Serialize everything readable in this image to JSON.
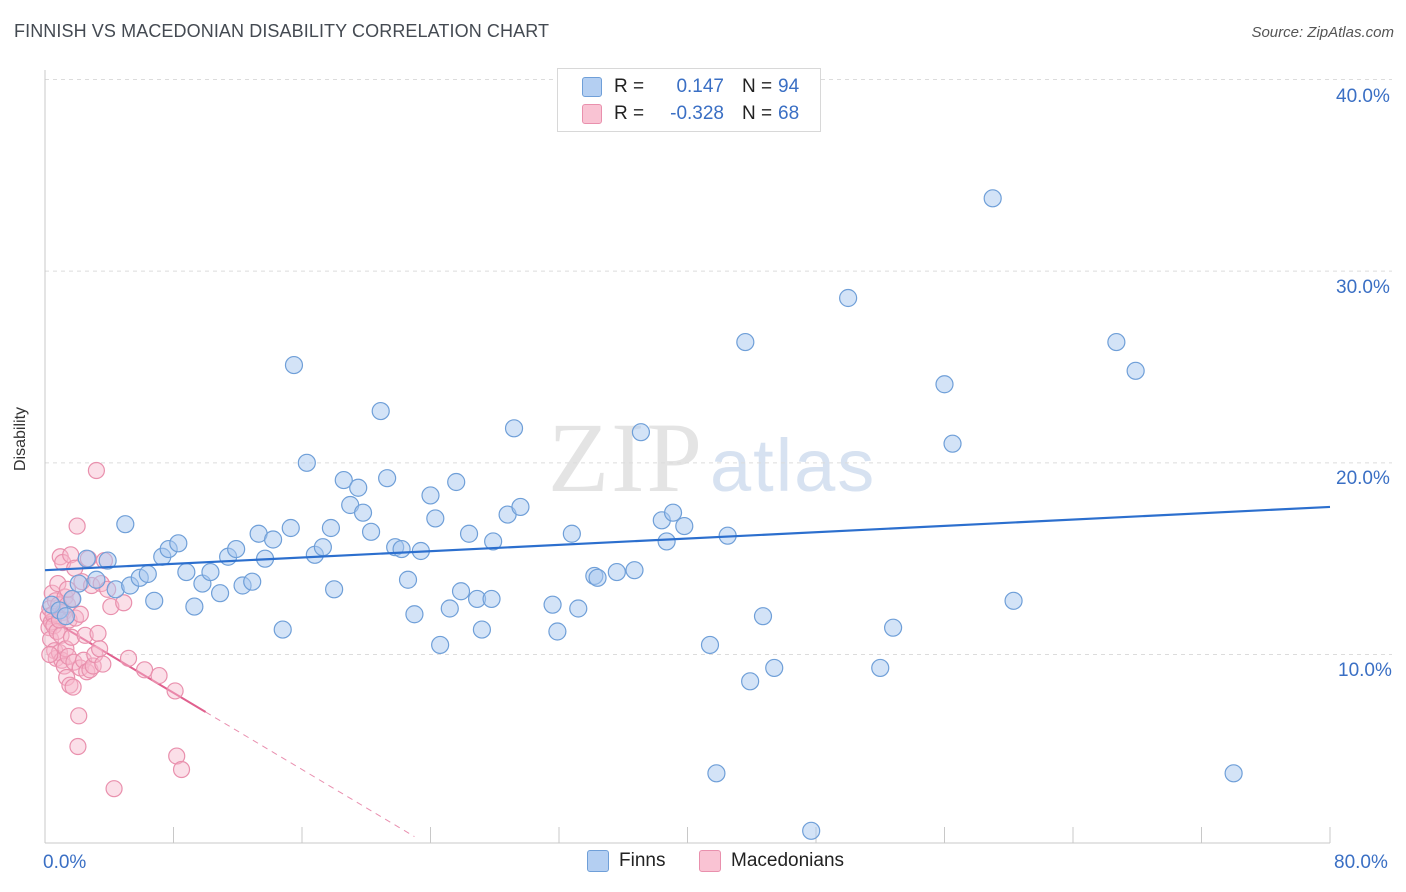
{
  "header": {
    "title": "FINNISH VS MACEDONIAN DISABILITY CORRELATION CHART",
    "source": "Source: ZipAtlas.com"
  },
  "watermark": {
    "part1": "ZIP",
    "part2": "atlas"
  },
  "legend_top": {
    "rows": [
      {
        "r_label": "R =",
        "r_value": "0.147",
        "n_label": "N =",
        "n_value": "94"
      },
      {
        "r_label": "R =",
        "r_value": "-0.328",
        "n_label": "N =",
        "n_value": "68"
      }
    ]
  },
  "legend_bottom": {
    "finns": "Finns",
    "macedonians": "Macedonians"
  },
  "axes": {
    "ylabel": "Disability",
    "x_min_label": "0.0%",
    "x_max_label": "80.0%",
    "y_ticks": [
      "10.0%",
      "20.0%",
      "30.0%",
      "40.0%"
    ]
  },
  "colors": {
    "finns_fill": "#a8c8f0",
    "finns_stroke": "#6f9fd8",
    "finns_line": "#2c6fce",
    "mac_fill": "#f7b8cb",
    "mac_stroke": "#e990ad",
    "mac_line": "#e0608e",
    "tick_text": "#3a6fc4"
  },
  "chart_data": {
    "type": "scatter",
    "title": "FINNISH VS MACEDONIAN DISABILITY CORRELATION CHART",
    "xlabel": "",
    "ylabel": "Disability",
    "xlim": [
      0,
      80
    ],
    "ylim": [
      0,
      42
    ],
    "y_ticks": [
      10,
      20,
      30,
      40
    ],
    "grid": true,
    "legend_position": "bottom",
    "series": [
      {
        "name": "Finns",
        "stats": {
          "R": 0.147,
          "N": 94
        },
        "trend": {
          "x0": 0,
          "y0": 14.4,
          "x1": 80,
          "y1": 17.7
        },
        "points": [
          [
            0.4,
            12.6
          ],
          [
            0.9,
            12.3
          ],
          [
            1.3,
            12.0
          ],
          [
            1.7,
            12.9
          ],
          [
            2.1,
            13.7
          ],
          [
            2.6,
            15.0
          ],
          [
            3.2,
            13.9
          ],
          [
            3.9,
            14.9
          ],
          [
            4.4,
            13.4
          ],
          [
            5.0,
            16.8
          ],
          [
            5.3,
            13.6
          ],
          [
            5.9,
            14.0
          ],
          [
            6.4,
            14.2
          ],
          [
            6.8,
            12.8
          ],
          [
            7.3,
            15.1
          ],
          [
            7.7,
            15.5
          ],
          [
            8.3,
            15.8
          ],
          [
            8.8,
            14.3
          ],
          [
            9.3,
            12.5
          ],
          [
            9.8,
            13.7
          ],
          [
            10.3,
            14.3
          ],
          [
            10.9,
            13.2
          ],
          [
            11.4,
            15.1
          ],
          [
            11.9,
            15.5
          ],
          [
            12.3,
            13.6
          ],
          [
            12.9,
            13.8
          ],
          [
            13.3,
            16.3
          ],
          [
            13.7,
            15.0
          ],
          [
            14.2,
            16.0
          ],
          [
            14.8,
            11.3
          ],
          [
            15.3,
            16.6
          ],
          [
            15.5,
            25.1
          ],
          [
            16.3,
            20.0
          ],
          [
            16.8,
            15.2
          ],
          [
            17.3,
            15.6
          ],
          [
            17.8,
            16.6
          ],
          [
            18.0,
            13.4
          ],
          [
            18.6,
            19.1
          ],
          [
            19.0,
            17.8
          ],
          [
            19.5,
            18.7
          ],
          [
            19.8,
            17.4
          ],
          [
            20.3,
            16.4
          ],
          [
            20.9,
            22.7
          ],
          [
            21.3,
            19.2
          ],
          [
            21.8,
            15.6
          ],
          [
            22.2,
            15.5
          ],
          [
            22.6,
            13.9
          ],
          [
            23.0,
            12.1
          ],
          [
            23.4,
            15.4
          ],
          [
            24.0,
            18.3
          ],
          [
            24.3,
            17.1
          ],
          [
            24.6,
            10.5
          ],
          [
            25.2,
            12.4
          ],
          [
            25.6,
            19.0
          ],
          [
            25.9,
            13.3
          ],
          [
            26.4,
            16.3
          ],
          [
            26.9,
            12.9
          ],
          [
            27.2,
            11.3
          ],
          [
            27.9,
            15.9
          ],
          [
            28.8,
            17.3
          ],
          [
            29.2,
            21.8
          ],
          [
            29.6,
            17.7
          ],
          [
            31.6,
            12.6
          ],
          [
            31.9,
            11.2
          ],
          [
            32.8,
            16.3
          ],
          [
            33.2,
            12.4
          ],
          [
            34.2,
            14.1
          ],
          [
            34.4,
            14.0
          ],
          [
            35.6,
            14.3
          ],
          [
            36.7,
            14.4
          ],
          [
            37.1,
            21.6
          ],
          [
            38.4,
            17.0
          ],
          [
            38.7,
            15.9
          ],
          [
            39.1,
            17.4
          ],
          [
            39.8,
            16.7
          ],
          [
            41.4,
            10.5
          ],
          [
            41.8,
            3.8
          ],
          [
            42.5,
            16.2
          ],
          [
            43.6,
            26.3
          ],
          [
            43.9,
            8.6
          ],
          [
            44.7,
            12.0
          ],
          [
            45.4,
            9.3
          ],
          [
            47.7,
            0.8
          ],
          [
            50.0,
            28.6
          ],
          [
            52.0,
            9.3
          ],
          [
            52.8,
            11.4
          ],
          [
            56.0,
            24.1
          ],
          [
            56.5,
            21.0
          ],
          [
            59.0,
            33.8
          ],
          [
            60.3,
            12.8
          ],
          [
            66.7,
            26.3
          ],
          [
            67.9,
            24.8
          ],
          [
            74.0,
            3.8
          ],
          [
            27.8,
            12.9
          ]
        ]
      },
      {
        "name": "Macedonians",
        "stats": {
          "R": -0.328,
          "N": 68
        },
        "trend": {
          "x0": 0,
          "y0": 12.0,
          "x1": 10.0,
          "y1": 7.0,
          "dash_x1": 23.0,
          "dash_y1": 0.5
        },
        "points": [
          [
            0.2,
            12.0
          ],
          [
            0.25,
            11.4
          ],
          [
            0.3,
            12.4
          ],
          [
            0.35,
            10.8
          ],
          [
            0.4,
            11.7
          ],
          [
            0.45,
            13.2
          ],
          [
            0.5,
            12.1
          ],
          [
            0.55,
            11.5
          ],
          [
            0.6,
            10.2
          ],
          [
            0.65,
            12.8
          ],
          [
            0.7,
            9.8
          ],
          [
            0.75,
            11.2
          ],
          [
            0.8,
            13.7
          ],
          [
            0.85,
            12.6
          ],
          [
            0.9,
            10.1
          ],
          [
            0.95,
            15.1
          ],
          [
            1.0,
            11.0
          ],
          [
            1.05,
            9.7
          ],
          [
            1.1,
            14.8
          ],
          [
            1.15,
            12.2
          ],
          [
            1.2,
            9.4
          ],
          [
            1.25,
            13.0
          ],
          [
            1.3,
            10.3
          ],
          [
            1.35,
            8.8
          ],
          [
            1.4,
            12.6
          ],
          [
            1.45,
            9.9
          ],
          [
            1.5,
            11.8
          ],
          [
            1.55,
            8.4
          ],
          [
            1.6,
            15.2
          ],
          [
            1.65,
            10.9
          ],
          [
            1.7,
            12.9
          ],
          [
            1.75,
            8.3
          ],
          [
            1.8,
            9.6
          ],
          [
            1.85,
            14.5
          ],
          [
            1.9,
            11.9
          ],
          [
            2.0,
            16.7
          ],
          [
            2.05,
            5.2
          ],
          [
            2.1,
            6.8
          ],
          [
            2.2,
            9.3
          ],
          [
            2.3,
            13.8
          ],
          [
            2.4,
            9.7
          ],
          [
            2.5,
            11.0
          ],
          [
            2.6,
            9.1
          ],
          [
            2.7,
            15.0
          ],
          [
            2.8,
            9.2
          ],
          [
            2.9,
            13.6
          ],
          [
            3.0,
            9.4
          ],
          [
            3.1,
            10.0
          ],
          [
            3.2,
            19.6
          ],
          [
            3.3,
            11.1
          ],
          [
            3.4,
            10.3
          ],
          [
            3.5,
            13.7
          ],
          [
            3.6,
            9.5
          ],
          [
            3.7,
            14.9
          ],
          [
            3.9,
            13.4
          ],
          [
            4.1,
            12.5
          ],
          [
            4.3,
            3.0
          ],
          [
            4.9,
            12.7
          ],
          [
            5.2,
            9.8
          ],
          [
            6.2,
            9.2
          ],
          [
            7.1,
            8.9
          ],
          [
            8.1,
            8.1
          ],
          [
            8.2,
            4.7
          ],
          [
            8.5,
            4.0
          ],
          [
            0.3,
            10.0
          ],
          [
            0.9,
            11.8
          ],
          [
            1.4,
            13.4
          ],
          [
            2.2,
            12.1
          ]
        ]
      }
    ]
  }
}
